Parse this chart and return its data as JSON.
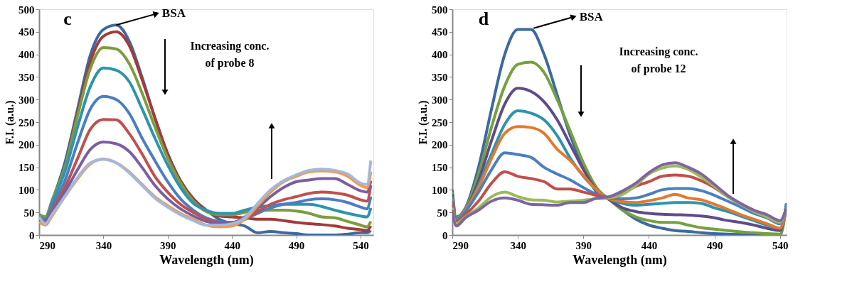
{
  "chart_data": [
    {
      "type": "line",
      "xlabel": "Wavelength (nm)",
      "ylabel": "F.I. (a.u.)",
      "xlim": [
        290,
        550
      ],
      "xticks": [
        290,
        340,
        390,
        440,
        490,
        540
      ],
      "ylim": [
        0,
        500
      ],
      "yticks": [
        0,
        50,
        100,
        150,
        200,
        250,
        300,
        350,
        400,
        450,
        500
      ],
      "grid": false,
      "legend": false,
      "x": [
        290,
        295,
        300,
        310,
        320,
        330,
        340,
        350,
        360,
        370,
        380,
        390,
        400,
        410,
        420,
        430,
        440,
        450,
        460,
        470,
        480,
        490,
        500,
        510,
        520,
        530,
        540,
        545,
        548
      ],
      "annotations": [
        "c",
        {
          "text": "BSA",
          "x": 350,
          "y": 465
        },
        "Increasing  conc.\nof probe 8"
      ],
      "series": [
        {
          "color": "#3c6aa0",
          "values": [
            45,
            40,
            75,
            160,
            280,
            400,
            455,
            465,
            430,
            350,
            260,
            180,
            120,
            80,
            55,
            35,
            25,
            20,
            5,
            8,
            5,
            3,
            0,
            0,
            0,
            2,
            5,
            5,
            10
          ]
        },
        {
          "color": "#a23b3a",
          "values": [
            40,
            35,
            70,
            150,
            270,
            385,
            440,
            450,
            420,
            345,
            260,
            180,
            120,
            80,
            55,
            42,
            40,
            38,
            35,
            35,
            32,
            28,
            25,
            23,
            20,
            15,
            12,
            10,
            20
          ]
        },
        {
          "color": "#7f9b3f",
          "values": [
            45,
            40,
            75,
            150,
            265,
            370,
            415,
            412,
            380,
            315,
            240,
            170,
            115,
            75,
            52,
            45,
            45,
            50,
            55,
            55,
            55,
            53,
            48,
            40,
            38,
            30,
            22,
            18,
            30
          ]
        },
        {
          "color": "#2e94ad",
          "values": [
            40,
            35,
            70,
            140,
            240,
            330,
            370,
            365,
            340,
            280,
            215,
            155,
            105,
            70,
            55,
            48,
            48,
            55,
            62,
            65,
            68,
            68,
            68,
            63,
            55,
            48,
            42,
            40,
            60
          ]
        },
        {
          "color": "#4a7fc0",
          "values": [
            38,
            32,
            62,
            120,
            205,
            280,
            307,
            300,
            270,
            215,
            165,
            118,
            80,
            55,
            38,
            30,
            28,
            35,
            48,
            60,
            68,
            72,
            78,
            80,
            78,
            72,
            62,
            58,
            85
          ]
        },
        {
          "color": "#c0504d",
          "values": [
            35,
            30,
            55,
            105,
            170,
            235,
            256,
            255,
            225,
            180,
            130,
            95,
            68,
            50,
            35,
            28,
            27,
            35,
            52,
            68,
            78,
            85,
            92,
            95,
            93,
            88,
            78,
            75,
            110
          ]
        },
        {
          "color": "#7b5e9f",
          "values": [
            32,
            28,
            50,
            95,
            145,
            190,
            206,
            202,
            185,
            150,
            110,
            80,
            58,
            42,
            30,
            26,
            27,
            40,
            60,
            85,
            105,
            118,
            122,
            125,
            125,
            112,
            98,
            95,
            120
          ]
        },
        {
          "color": "#f79646",
          "values": [
            28,
            22,
            42,
            85,
            125,
            158,
            168,
            160,
            140,
            112,
            85,
            65,
            48,
            35,
            22,
            18,
            20,
            35,
            65,
            95,
            118,
            130,
            140,
            142,
            140,
            130,
            110,
            105,
            140
          ]
        },
        {
          "color": "#a5b8d9",
          "values": [
            40,
            25,
            45,
            85,
            128,
            160,
            168,
            160,
            138,
            110,
            82,
            62,
            45,
            32,
            22,
            22,
            25,
            38,
            70,
            100,
            120,
            133,
            143,
            146,
            143,
            135,
            115,
            112,
            165
          ]
        }
      ]
    },
    {
      "type": "line",
      "xlabel": "Wavelength (nm)",
      "ylabel": "F.I. (a.u.)",
      "xlim": [
        290,
        545
      ],
      "xticks": [
        290,
        340,
        390,
        440,
        490,
        540
      ],
      "ylim": [
        0,
        500
      ],
      "yticks": [
        0,
        50,
        100,
        150,
        200,
        250,
        300,
        350,
        400,
        450,
        500
      ],
      "grid": false,
      "legend": false,
      "x": [
        290,
        293,
        300,
        310,
        320,
        330,
        340,
        350,
        360,
        370,
        380,
        390,
        400,
        410,
        420,
        430,
        440,
        450,
        460,
        470,
        480,
        490,
        500,
        510,
        520,
        530,
        540,
        545
      ],
      "annotations": [
        "d",
        {
          "text": "BSA",
          "x": 352,
          "y": 458
        },
        "Increasing conc.\nof probe 12"
      ],
      "series": [
        {
          "color": "#3c6aa0",
          "values": [
            100,
            40,
            60,
            150,
            280,
            400,
            455,
            455,
            400,
            310,
            220,
            150,
            95,
            78,
            55,
            35,
            22,
            15,
            10,
            8,
            5,
            3,
            2,
            1,
            0,
            0,
            0,
            70
          ]
        },
        {
          "color": "#77a03f",
          "values": [
            95,
            38,
            58,
            135,
            240,
            330,
            378,
            383,
            360,
            300,
            230,
            160,
            105,
            78,
            55,
            40,
            32,
            28,
            28,
            22,
            16,
            13,
            10,
            7,
            5,
            3,
            2,
            70
          ]
        },
        {
          "color": "#5f4b8b",
          "values": [
            90,
            35,
            55,
            120,
            210,
            290,
            325,
            318,
            295,
            255,
            200,
            145,
            100,
            78,
            60,
            52,
            48,
            46,
            45,
            44,
            42,
            38,
            32,
            28,
            22,
            15,
            10,
            70
          ]
        },
        {
          "color": "#2e94ad",
          "values": [
            85,
            35,
            55,
            110,
            180,
            245,
            275,
            270,
            255,
            220,
            170,
            130,
            100,
            80,
            70,
            66,
            68,
            70,
            72,
            72,
            70,
            60,
            52,
            42,
            32,
            22,
            15,
            70
          ]
        },
        {
          "color": "#e07a2e",
          "values": [
            80,
            33,
            55,
            105,
            170,
            225,
            240,
            238,
            225,
            190,
            165,
            132,
            100,
            80,
            74,
            72,
            76,
            82,
            90,
            82,
            78,
            68,
            57,
            45,
            35,
            25,
            15,
            60
          ]
        },
        {
          "color": "#4a7fc0",
          "values": [
            75,
            32,
            52,
            95,
            145,
            182,
            178,
            172,
            150,
            135,
            122,
            105,
            90,
            82,
            80,
            82,
            90,
            100,
            103,
            103,
            98,
            88,
            75,
            62,
            48,
            38,
            25,
            60
          ]
        },
        {
          "color": "#c0504d",
          "values": [
            70,
            30,
            45,
            75,
            115,
            140,
            130,
            125,
            118,
            102,
            102,
            95,
            88,
            80,
            92,
            108,
            118,
            130,
            133,
            130,
            120,
            105,
            85,
            68,
            55,
            42,
            30,
            60
          ]
        },
        {
          "color": "#9bbb59",
          "values": [
            60,
            25,
            40,
            60,
            85,
            95,
            85,
            78,
            77,
            73,
            75,
            77,
            80,
            82,
            90,
            110,
            135,
            148,
            153,
            145,
            128,
            108,
            85,
            68,
            52,
            40,
            28,
            60
          ]
        },
        {
          "color": "#8064a2",
          "values": [
            55,
            20,
            38,
            55,
            75,
            82,
            77,
            68,
            67,
            66,
            72,
            72,
            82,
            85,
            98,
            115,
            138,
            155,
            160,
            150,
            135,
            112,
            88,
            70,
            55,
            45,
            32,
            60
          ]
        }
      ]
    }
  ]
}
